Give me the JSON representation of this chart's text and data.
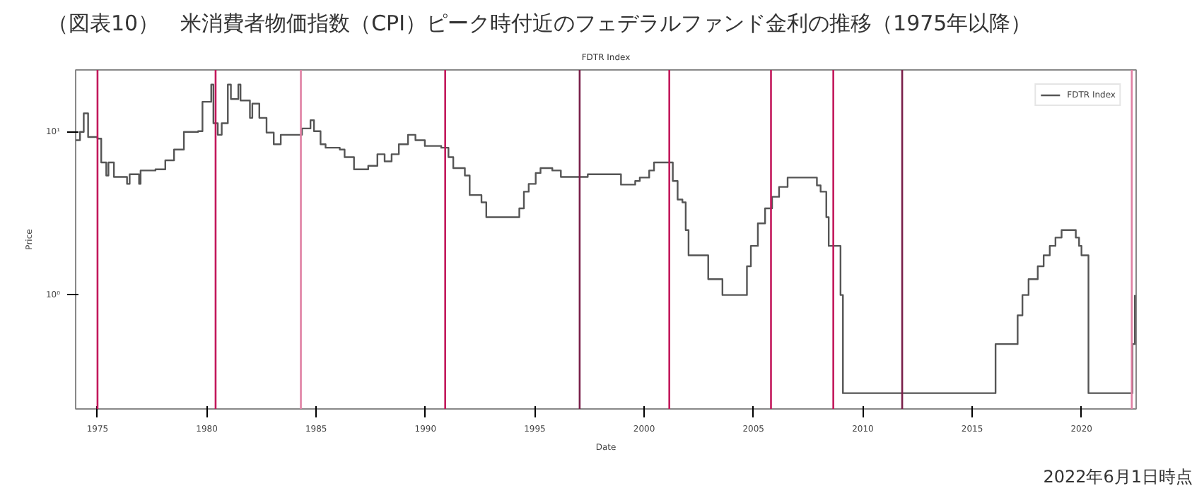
{
  "chart_data": {
    "type": "step",
    "title": "（図表10）　米消費者物価指数（CPI）ピーク時付近のフェデラルファンド金利の推移（1975年以降）",
    "subtitle": "FDTR Index",
    "xlabel": "Date",
    "ylabel": "Price",
    "log": "y",
    "grid": false,
    "legend": "top right",
    "line_style": "solid",
    "xlim": [
      1974.0,
      2022.5
    ],
    "xticks": [
      1975,
      1980,
      1985,
      1990,
      1995,
      2000,
      2005,
      2010,
      2015,
      2020
    ],
    "ylim": [
      0.2,
      24
    ],
    "yticks": [
      {
        "value": 1,
        "label": "10⁰"
      },
      {
        "value": 10,
        "label": "10¹"
      }
    ],
    "series": [
      {
        "name": "FDTR Index",
        "color": "#555555",
        "x": [
          1974.0,
          1974.2,
          1974.37,
          1974.57,
          1975.0,
          1975.17,
          1975.4,
          1975.5,
          1975.75,
          1976.35,
          1976.47,
          1976.9,
          1976.97,
          1977.65,
          1978.1,
          1978.5,
          1978.95,
          1979.6,
          1979.8,
          1980.2,
          1980.3,
          1980.5,
          1980.68,
          1980.96,
          1981.1,
          1981.44,
          1981.54,
          1981.97,
          1982.08,
          1982.4,
          1982.73,
          1983.06,
          1983.38,
          1984.24,
          1984.35,
          1984.74,
          1984.9,
          1985.2,
          1985.43,
          1986.08,
          1986.3,
          1986.73,
          1987.38,
          1987.8,
          1988.13,
          1988.45,
          1988.78,
          1989.2,
          1989.54,
          1989.97,
          1990.72,
          1991.05,
          1991.27,
          1991.8,
          1992.02,
          1992.56,
          1992.78,
          1994.18,
          1994.29,
          1994.5,
          1994.72,
          1995.04,
          1995.26,
          1995.8,
          1996.19,
          1997.3,
          1997.42,
          1998.83,
          1998.94,
          1999.59,
          1999.8,
          2000.23,
          2000.45,
          2001.1,
          2001.31,
          2001.53,
          2001.75,
          2001.9,
          2002.03,
          2002.89,
          2002.93,
          2003.54,
          2003.58,
          2004.62,
          2004.7,
          2004.88,
          2005.2,
          2005.53,
          2005.85,
          2006.17,
          2006.56,
          2007.73,
          2007.9,
          2008.07,
          2008.33,
          2008.44,
          2008.87,
          2008.98,
          2009.09,
          2016.0,
          2016.07,
          2017.02,
          2017.08,
          2017.3,
          2017.58,
          2018.0,
          2018.27,
          2018.55,
          2018.81,
          2019.09,
          2019.6,
          2019.74,
          2019.89,
          2020.0,
          2020.28,
          2020.32,
          2022.26,
          2022.33,
          2022.44
        ],
        "values": [
          8.9,
          10,
          13,
          9.3,
          9.1,
          6.5,
          5.4,
          6.5,
          5.3,
          4.8,
          5.5,
          4.8,
          5.8,
          5.9,
          6.7,
          7.8,
          10,
          10.1,
          15.3,
          19.5,
          11.3,
          9.6,
          11.3,
          19.5,
          15.9,
          19.5,
          15.6,
          12.2,
          14.9,
          12.2,
          9.9,
          8.4,
          9.6,
          9.6,
          10.5,
          11.8,
          10.1,
          8.4,
          8.0,
          7.8,
          7.0,
          5.9,
          6.2,
          7.3,
          6.6,
          7.3,
          8.4,
          9.6,
          8.9,
          8.2,
          8.0,
          7.0,
          6.0,
          5.4,
          4.1,
          3.7,
          3.0,
          3.0,
          3.4,
          4.3,
          4.8,
          5.6,
          6.0,
          5.8,
          5.3,
          5.3,
          5.5,
          5.5,
          4.75,
          5.0,
          5.25,
          5.8,
          6.5,
          6.5,
          5.0,
          3.85,
          3.7,
          2.5,
          1.75,
          1.75,
          1.25,
          1.25,
          1.0,
          1.0,
          1.5,
          2.0,
          2.75,
          3.4,
          4.0,
          4.6,
          5.25,
          5.25,
          4.7,
          4.3,
          3.0,
          2.0,
          2.0,
          1.0,
          0.25,
          0.25,
          0.5,
          0.5,
          0.75,
          1.0,
          1.25,
          1.5,
          1.75,
          2.0,
          2.25,
          2.5,
          2.5,
          2.25,
          2.0,
          1.75,
          1.75,
          0.25,
          0.25,
          0.5,
          1.0
        ]
      }
    ],
    "ref_lines": [
      {
        "axis": "x",
        "value": 1975.0,
        "color": "#c2185b"
      },
      {
        "axis": "x",
        "value": 1980.4,
        "color": "#c2185b"
      },
      {
        "axis": "x",
        "value": 1984.3,
        "color": "#e080a3"
      },
      {
        "axis": "x",
        "value": 1990.9,
        "color": "#c2185b"
      },
      {
        "axis": "x",
        "value": 1997.05,
        "color": "#7a1f4a"
      },
      {
        "axis": "x",
        "value": 2001.15,
        "color": "#c2185b"
      },
      {
        "axis": "x",
        "value": 2005.8,
        "color": "#c2185b"
      },
      {
        "axis": "x",
        "value": 2008.65,
        "color": "#c2185b"
      },
      {
        "axis": "x",
        "value": 2011.8,
        "color": "#7a1f4a"
      },
      {
        "axis": "x",
        "value": 2022.3,
        "color": "#e080a3"
      }
    ],
    "annotations": [
      "2022年6月1日時点"
    ]
  }
}
